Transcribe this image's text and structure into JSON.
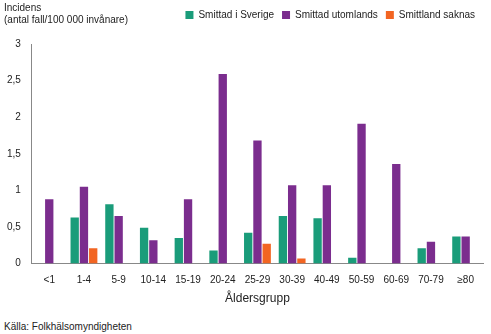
{
  "chart_data": {
    "type": "bar",
    "ylabel": [
      "Incidens",
      "(antal fall/100 000 invånare)"
    ],
    "xlabel": "Åldersgrupp",
    "source": "Källa: Folkhälsomyndigheten",
    "categories": [
      "<1",
      "1-4",
      "5-9",
      "10-14",
      "15-19",
      "20-24",
      "25-29",
      "30-39",
      "40-49",
      "50-59",
      "60-69",
      "70-79",
      "≥80"
    ],
    "series": [
      {
        "name": "Smittad i Sverige",
        "color": "#1a9c7a",
        "values": [
          null,
          0.63,
          0.81,
          0.49,
          0.35,
          0.18,
          0.42,
          0.65,
          0.62,
          0.08,
          null,
          0.21,
          0.37
        ]
      },
      {
        "name": "Smittad utomlands",
        "color": "#7b2d8e",
        "values": [
          0.88,
          1.05,
          0.65,
          0.32,
          0.88,
          2.59,
          1.68,
          1.07,
          1.07,
          1.91,
          1.36,
          0.3,
          0.37
        ]
      },
      {
        "name": "Smittland saknas",
        "color": "#f26522",
        "values": [
          null,
          0.21,
          null,
          null,
          null,
          null,
          0.27,
          0.07,
          null,
          null,
          null,
          null,
          null
        ]
      }
    ],
    "ylim": [
      0,
      3
    ],
    "yticks": [
      0,
      {
        "value": 0.5,
        "label": "0,5"
      },
      1,
      {
        "value": 1.5,
        "label": "1,5"
      },
      2,
      {
        "value": 2.5,
        "label": "2,5"
      },
      3
    ],
    "grid": false,
    "legend": "top"
  }
}
